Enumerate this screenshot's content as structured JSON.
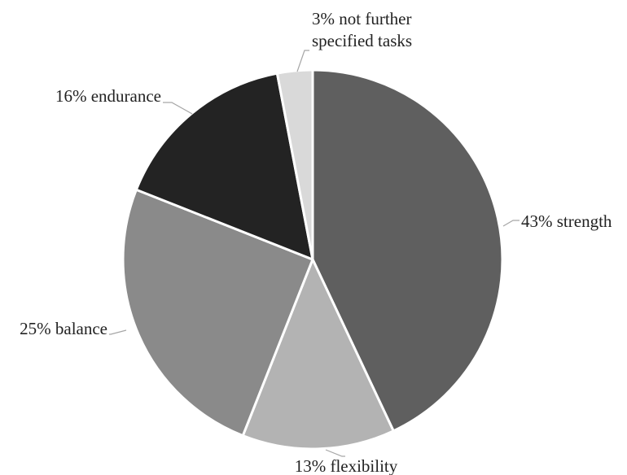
{
  "chart_data": {
    "type": "pie",
    "slices": [
      {
        "label": "strength",
        "value": 43,
        "text_lines": [
          "43% strength"
        ],
        "color": "#5f5f5f"
      },
      {
        "label": "flexibility",
        "value": 13,
        "text_lines": [
          "13% flexibility"
        ],
        "color": "#b3b3b3"
      },
      {
        "label": "balance",
        "value": 25,
        "text_lines": [
          "25% balance"
        ],
        "color": "#8a8a8a"
      },
      {
        "label": "endurance",
        "value": 16,
        "text_lines": [
          "16% endurance"
        ],
        "color": "#232323"
      },
      {
        "label": "not further specified tasks",
        "value": 3,
        "text_lines": [
          "3% not further",
          "specified tasks"
        ],
        "color": "#d9d9d9"
      }
    ],
    "start": "12 o'clock",
    "direction": "clockwise",
    "legend": "none",
    "label_style": "outside with leader lines"
  }
}
